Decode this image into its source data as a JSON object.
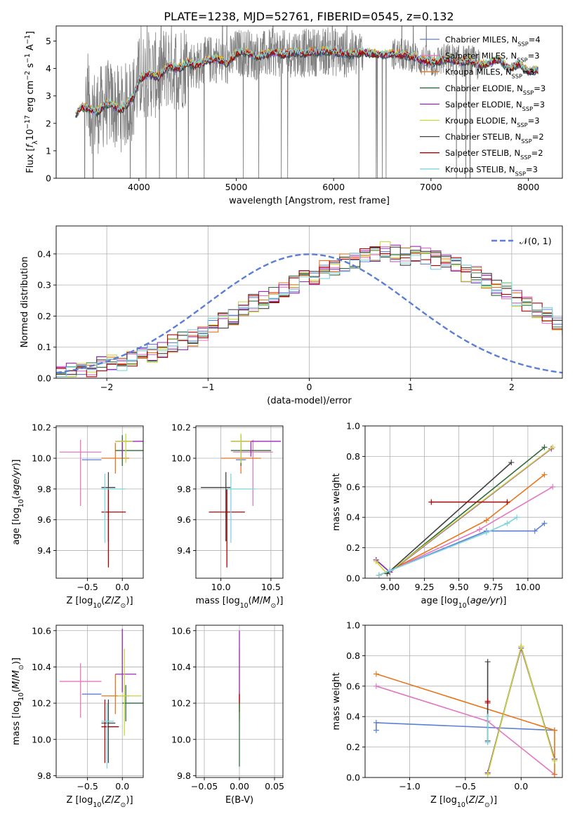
{
  "figure_title": "PLATE=1238, MJD=52761, FIBERID=0545, z=0.132",
  "colors": {
    "Chabrier MILES": "#5b7fd4",
    "Salpeter MILES": "#e377c2",
    "Kroupa MILES": "#e8751a",
    "Chabrier ELODIE": "#2f6b3d",
    "Salpeter ELODIE": "#9a28b8",
    "Kroupa ELODIE": "#c8d63a",
    "Chabrier STELIB": "#404040",
    "Salpeter STELIB": "#b40000",
    "Kroupa STELIB": "#7fd4dc",
    "data": "#808080"
  },
  "chart_data": [
    {
      "id": "spectrum",
      "type": "line",
      "title": "PLATE=1238, MJD=52761, FIBERID=0545, z=0.132",
      "xlabel": "wavelength [Angstrom, rest frame]",
      "ylabel": "Flux [f_λ10^-17 erg cm^-2 s^-1 A^-1]",
      "xlim": [
        3150,
        8350
      ],
      "ylim": [
        0,
        5.55
      ],
      "xticks": [
        4000,
        5000,
        6000,
        7000,
        8000
      ],
      "yticks": [
        0,
        1,
        2,
        3,
        4,
        5
      ],
      "grid": false,
      "legend": "upper right",
      "legend_entries": [
        {
          "label": "Chabrier MILES, N_SSP=4",
          "name": "Chabrier MILES"
        },
        {
          "label": "Salpeter MILES, N_SSP=3",
          "name": "Salpeter MILES"
        },
        {
          "label": "Kroupa MILES, N_SSP=3",
          "name": "Kroupa MILES"
        },
        {
          "label": "Chabrier ELODIE, N_SSP=3",
          "name": "Chabrier ELODIE"
        },
        {
          "label": "Salpeter ELODIE, N_SSP=3",
          "name": "Salpeter ELODIE"
        },
        {
          "label": "Kroupa ELODIE, N_SSP=3",
          "name": "Kroupa ELODIE"
        },
        {
          "label": "Chabrier STELIB, N_SSP=2",
          "name": "Chabrier STELIB"
        },
        {
          "label": "Salpeter STELIB, N_SSP=2",
          "name": "Salpeter STELIB"
        },
        {
          "label": "Kroupa STELIB, N_SSP=3",
          "name": "Kroupa STELIB"
        }
      ],
      "continuum": {
        "x": [
          3350,
          3400,
          3450,
          3500,
          3550,
          3600,
          3650,
          3700,
          3750,
          3800,
          3850,
          3900,
          3950,
          4000,
          4100,
          4200,
          4300,
          4400,
          4500,
          4600,
          4700,
          4800,
          4900,
          5000,
          5100,
          5200,
          5300,
          5400,
          5500,
          5600,
          5700,
          5800,
          5900,
          6000,
          6100,
          6200,
          6300,
          6400,
          6500,
          6600,
          6700,
          6800,
          6900,
          7000,
          7100,
          7200,
          7300,
          7400,
          7500,
          7600,
          7700,
          7800,
          7900,
          8000,
          8100
        ],
        "y": [
          2.3,
          2.55,
          2.6,
          2.5,
          2.4,
          2.5,
          2.7,
          2.75,
          2.6,
          2.5,
          2.6,
          2.8,
          3.0,
          3.6,
          3.8,
          3.7,
          4.1,
          4.0,
          4.2,
          4.1,
          4.3,
          4.35,
          4.2,
          4.55,
          4.6,
          4.45,
          4.5,
          4.6,
          4.5,
          4.6,
          4.55,
          4.6,
          4.65,
          4.6,
          4.55,
          4.5,
          4.6,
          4.55,
          4.5,
          4.55,
          4.5,
          4.45,
          4.3,
          4.2,
          4.3,
          4.35,
          4.25,
          4.3,
          4.1,
          4.2,
          4.35,
          4.0,
          4.15,
          3.9,
          3.95
        ]
      },
      "data_spectrum": {
        "name": "data",
        "x_range": [
          3350,
          8100
        ],
        "y_range": [
          0,
          5.55
        ],
        "note": "noisy observed spectrum drawn in gray behind the model fits"
      }
    },
    {
      "id": "residuals",
      "type": "line",
      "xlabel": "(data-model)/error",
      "ylabel": "Normed distribution",
      "xlim": [
        -2.5,
        2.5
      ],
      "ylim": [
        0,
        0.49
      ],
      "xticks": [
        -2,
        -1,
        0,
        1,
        2
      ],
      "yticks": [
        0.0,
        0.1,
        0.2,
        0.3,
        0.4
      ],
      "grid": true,
      "legend": "upper right",
      "legend_entries": [
        {
          "label": "𝒩(0, 1)",
          "name": "gaussian"
        }
      ],
      "gaussian": {
        "mean": 0,
        "sigma": 1
      },
      "bin_width": 0.1,
      "bin_start": -2.5,
      "hist_base": [
        0.02,
        0.02,
        0.025,
        0.03,
        0.04,
        0.045,
        0.05,
        0.06,
        0.07,
        0.08,
        0.09,
        0.11,
        0.12,
        0.13,
        0.15,
        0.17,
        0.19,
        0.2,
        0.22,
        0.24,
        0.25,
        0.27,
        0.29,
        0.3,
        0.32,
        0.33,
        0.35,
        0.36,
        0.37,
        0.38,
        0.39,
        0.4,
        0.41,
        0.4,
        0.39,
        0.4,
        0.39,
        0.38,
        0.37,
        0.36,
        0.34,
        0.33,
        0.31,
        0.29,
        0.28,
        0.26,
        0.24,
        0.22,
        0.2,
        0.18,
        0.16,
        0.14,
        0.13,
        0.11,
        0.1,
        0.09,
        0.08,
        0.07,
        0.06,
        0.05,
        0.05,
        0.04,
        0.035,
        0.03,
        0.03,
        0.025,
        0.02,
        0.02,
        0.02,
        0.02
      ]
    },
    {
      "id": "age_vs_Z",
      "type": "scatter",
      "xlabel": "Z [log10(Z/Z⊙)]",
      "ylabel": "age  [log10(age/yr)]",
      "xlim": [
        -0.95,
        0.3
      ],
      "ylim": [
        9.22,
        10.21
      ],
      "xticks": [
        -0.5,
        0.0
      ],
      "yticks": [
        9.4,
        9.6,
        9.8,
        10.0,
        10.2
      ],
      "grid": true,
      "points": [
        {
          "name": "Chabrier MILES",
          "x": -0.3,
          "y": 9.99,
          "xerr": [
            0.28,
            0.0
          ],
          "yerr": [
            0.0,
            0.0
          ]
        },
        {
          "name": "Salpeter MILES",
          "x": -0.6,
          "y": 10.04,
          "xerr": [
            0.3,
            0.3
          ],
          "yerr": [
            0.35,
            0.08
          ]
        },
        {
          "name": "Kroupa MILES",
          "x": -0.1,
          "y": 10.0,
          "xerr": [
            0.2,
            0.2
          ],
          "yerr": [
            0.1,
            0.1
          ]
        },
        {
          "name": "Chabrier ELODIE",
          "x": 0.0,
          "y": 10.05,
          "xerr": [
            0.1,
            0.3
          ],
          "yerr": [
            0.1,
            0.1
          ]
        },
        {
          "name": "Salpeter ELODIE",
          "x": 0.0,
          "y": 10.11,
          "xerr": [
            0.1,
            0.3
          ],
          "yerr": [
            0.1,
            0.0
          ]
        },
        {
          "name": "Kroupa ELODIE",
          "x": 0.05,
          "y": 10.11,
          "xerr": [
            0.15,
            0.1
          ],
          "yerr": [
            0.14,
            0.05
          ]
        },
        {
          "name": "Chabrier STELIB",
          "x": -0.2,
          "y": 9.81,
          "xerr": [
            0.1,
            0.1
          ],
          "yerr": [
            0.35,
            0.1
          ]
        },
        {
          "name": "Salpeter STELIB",
          "x": -0.2,
          "y": 9.65,
          "xerr": [
            0.1,
            0.25
          ],
          "yerr": [
            0.36,
            0.15
          ]
        },
        {
          "name": "Kroupa STELIB",
          "x": -0.25,
          "y": 9.8,
          "xerr": [
            0.05,
            0.3
          ],
          "yerr": [
            0.35,
            0.1
          ]
        }
      ]
    },
    {
      "id": "age_vs_mass",
      "type": "scatter",
      "xlabel": "mass [log10(M/M⊙)]",
      "ylabel": "",
      "xlim": [
        9.75,
        10.62
      ],
      "ylim": [
        9.22,
        10.21
      ],
      "xticks": [
        10.0,
        10.5
      ],
      "yticks": [
        9.4,
        9.6,
        9.8,
        10.0,
        10.2
      ],
      "grid": true,
      "points": [
        {
          "name": "Chabrier MILES",
          "x": 10.25,
          "y": 9.99,
          "xerr": [
            0.1,
            0.0
          ],
          "yerr": [
            0.0,
            0.0
          ]
        },
        {
          "name": "Salpeter MILES",
          "x": 10.32,
          "y": 10.04,
          "xerr": [
            0.2,
            0.2
          ],
          "yerr": [
            0.35,
            0.08
          ]
        },
        {
          "name": "Kroupa MILES",
          "x": 10.2,
          "y": 10.0,
          "xerr": [
            0.2,
            0.2
          ],
          "yerr": [
            0.1,
            0.1
          ]
        },
        {
          "name": "Chabrier ELODIE",
          "x": 10.2,
          "y": 10.05,
          "xerr": [
            0.1,
            0.3
          ],
          "yerr": [
            0.1,
            0.1
          ]
        },
        {
          "name": "Salpeter ELODIE",
          "x": 10.3,
          "y": 10.11,
          "xerr": [
            0.2,
            0.3
          ],
          "yerr": [
            0.1,
            0.0
          ]
        },
        {
          "name": "Kroupa ELODIE",
          "x": 10.2,
          "y": 10.11,
          "xerr": [
            0.1,
            0.1
          ],
          "yerr": [
            0.14,
            0.05
          ]
        },
        {
          "name": "Chabrier STELIB",
          "x": 10.05,
          "y": 9.81,
          "xerr": [
            0.25,
            0.05
          ],
          "yerr": [
            0.35,
            0.1
          ]
        },
        {
          "name": "Salpeter STELIB",
          "x": 10.06,
          "y": 9.65,
          "xerr": [
            0.18,
            0.18
          ],
          "yerr": [
            0.36,
            0.15
          ]
        },
        {
          "name": "Kroupa STELIB",
          "x": 10.1,
          "y": 9.8,
          "xerr": [
            0.05,
            0.25
          ],
          "yerr": [
            0.35,
            0.1
          ]
        }
      ]
    },
    {
      "id": "weight_vs_age",
      "type": "line",
      "xlabel": "age  [log10(age/yr)]",
      "ylabel": "mass weight",
      "xlim": [
        8.82,
        10.25
      ],
      "ylim": [
        0,
        1.0
      ],
      "xticks": [
        9.0,
        9.25,
        9.5,
        9.75,
        10.0
      ],
      "yticks": [
        0.0,
        0.2,
        0.4,
        0.6,
        0.8,
        1.0
      ],
      "grid": true,
      "series": [
        {
          "name": "Chabrier MILES",
          "x": [
            8.92,
            9.0,
            9.7,
            10.05,
            10.12
          ],
          "y": [
            0.02,
            0.05,
            0.31,
            0.31,
            0.36
          ]
        },
        {
          "name": "Salpeter MILES",
          "x": [
            8.92,
            9.0,
            9.65,
            10.18
          ],
          "y": [
            0.02,
            0.05,
            0.32,
            0.6
          ]
        },
        {
          "name": "Kroupa MILES",
          "x": [
            8.92,
            9.0,
            9.7,
            10.12
          ],
          "y": [
            0.02,
            0.05,
            0.38,
            0.68
          ]
        },
        {
          "name": "Chabrier ELODIE",
          "x": [
            8.9,
            9.0,
            10.12
          ],
          "y": [
            0.12,
            0.04,
            0.86
          ]
        },
        {
          "name": "Salpeter ELODIE",
          "x": [
            8.9,
            9.0,
            10.17
          ],
          "y": [
            0.12,
            0.04,
            0.85
          ]
        },
        {
          "name": "Kroupa ELODIE",
          "x": [
            8.9,
            8.98,
            10.18
          ],
          "y": [
            0.11,
            0.03,
            0.86
          ]
        },
        {
          "name": "Chabrier STELIB",
          "x": [
            8.98,
            9.88
          ],
          "y": [
            0.03,
            0.76
          ]
        },
        {
          "name": "Salpeter STELIB",
          "x": [
            9.3,
            9.85
          ],
          "y": [
            0.5,
            0.5
          ]
        },
        {
          "name": "Kroupa STELIB",
          "x": [
            8.92,
            9.0,
            9.7,
            9.85,
            9.92
          ],
          "y": [
            0.02,
            0.05,
            0.3,
            0.36,
            0.4
          ]
        }
      ]
    },
    {
      "id": "mass_vs_Z",
      "type": "scatter",
      "xlabel": "Z [log10(Z/Z⊙)]",
      "ylabel": "mass [log10(M/M⊙)]",
      "xlim": [
        -0.95,
        0.3
      ],
      "ylim": [
        9.79,
        10.63
      ],
      "xticks": [
        -0.5,
        0.0
      ],
      "yticks": [
        9.8,
        10.0,
        10.2,
        10.4,
        10.6
      ],
      "grid": true,
      "points": [
        {
          "name": "Chabrier MILES",
          "x": -0.3,
          "y": 10.25,
          "xerr": [
            0.28,
            0.0
          ],
          "yerr": [
            0.0,
            0.0
          ]
        },
        {
          "name": "Salpeter MILES",
          "x": -0.6,
          "y": 10.32,
          "xerr": [
            0.3,
            0.3
          ],
          "yerr": [
            0.2,
            0.1
          ]
        },
        {
          "name": "Kroupa MILES",
          "x": -0.1,
          "y": 10.24,
          "xerr": [
            0.2,
            0.2
          ],
          "yerr": [
            0.1,
            0.12
          ]
        },
        {
          "name": "Chabrier ELODIE",
          "x": 0.05,
          "y": 10.2,
          "xerr": [
            0.05,
            0.25
          ],
          "yerr": [
            0.1,
            0.1
          ]
        },
        {
          "name": "Salpeter ELODIE",
          "x": 0.0,
          "y": 10.36,
          "xerr": [
            0.1,
            0.2
          ],
          "yerr": [
            0.1,
            0.25
          ]
        },
        {
          "name": "Kroupa ELODIE",
          "x": 0.03,
          "y": 10.24,
          "xerr": [
            0.1,
            0.25
          ],
          "yerr": [
            0.22,
            0.26
          ]
        },
        {
          "name": "Chabrier STELIB",
          "x": -0.2,
          "y": 10.09,
          "xerr": [
            0.1,
            0.1
          ],
          "yerr": [
            0.22,
            0.13
          ]
        },
        {
          "name": "Salpeter STELIB",
          "x": -0.25,
          "y": 10.07,
          "xerr": [
            0.05,
            0.2
          ],
          "yerr": [
            0.2,
            0.15
          ]
        },
        {
          "name": "Kroupa STELIB",
          "x": -0.22,
          "y": 10.1,
          "xerr": [
            0.08,
            0.1
          ],
          "yerr": [
            0.26,
            0.1
          ]
        }
      ]
    },
    {
      "id": "mass_vs_ebv",
      "type": "scatter",
      "xlabel": "E(B-V)",
      "ylabel": "",
      "xlim": [
        -0.062,
        0.062
      ],
      "ylim": [
        9.79,
        10.63
      ],
      "xticks": [
        -0.05,
        0.0,
        0.05
      ],
      "yticks": [
        9.8,
        10.0,
        10.2,
        10.4,
        10.6
      ],
      "grid": true,
      "points": [
        {
          "name": "Kroupa ELODIE",
          "x": 0.0,
          "y": 10.3,
          "xerr": [
            0.0,
            0.0
          ],
          "yerr": [
            0.2,
            0.2
          ]
        },
        {
          "name": "Salpeter ELODIE",
          "x": 0.0,
          "y": 10.4,
          "xerr": [
            0.0,
            0.0
          ],
          "yerr": [
            0.2,
            0.2
          ]
        },
        {
          "name": "Salpeter STELIB",
          "x": 0.0,
          "y": 10.2,
          "xerr": [
            0.0,
            0.0
          ],
          "yerr": [
            0.05,
            0.05
          ]
        },
        {
          "name": "Chabrier ELODIE",
          "x": 0.0,
          "y": 10.1,
          "xerr": [
            0.0,
            0.0
          ],
          "yerr": [
            0.25,
            0.1
          ]
        }
      ]
    },
    {
      "id": "weight_vs_Z",
      "type": "line",
      "xlabel": "Z [log10(Z/Z⊙)]",
      "ylabel": "mass weight",
      "xlim": [
        -1.4,
        0.37
      ],
      "ylim": [
        0,
        1.0
      ],
      "xticks": [
        -1.0,
        -0.5,
        0.0
      ],
      "yticks": [
        0.0,
        0.2,
        0.4,
        0.6,
        0.8,
        1.0
      ],
      "grid": true,
      "series": [
        {
          "name": "Chabrier MILES",
          "x": [
            -1.3,
            -1.3,
            0.3
          ],
          "y": [
            0.31,
            0.36,
            0.31
          ]
        },
        {
          "name": "Salpeter MILES",
          "x": [
            -1.3,
            -0.3,
            0.3
          ],
          "y": [
            0.6,
            0.37,
            0.02
          ]
        },
        {
          "name": "Kroupa MILES",
          "x": [
            -1.3,
            0.3,
            0.3
          ],
          "y": [
            0.68,
            0.31,
            0.02
          ]
        },
        {
          "name": "Chabrier ELODIE",
          "x": [
            -0.3,
            0.0,
            0.3
          ],
          "y": [
            0.03,
            0.86,
            0.12
          ]
        },
        {
          "name": "Salpeter ELODIE",
          "x": [
            -0.3,
            0.0,
            0.3
          ],
          "y": [
            0.03,
            0.85,
            0.12
          ]
        },
        {
          "name": "Kroupa ELODIE",
          "x": [
            -0.3,
            0.0,
            0.3
          ],
          "y": [
            0.02,
            0.86,
            0.11
          ]
        },
        {
          "name": "Chabrier STELIB",
          "x": [
            -0.3,
            -0.3
          ],
          "y": [
            0.24,
            0.76
          ]
        },
        {
          "name": "Salpeter STELIB",
          "x": [
            -0.3,
            -0.3
          ],
          "y": [
            0.5,
            0.49
          ]
        },
        {
          "name": "Kroupa STELIB",
          "x": [
            -0.3,
            -0.3
          ],
          "y": [
            0.23,
            0.4
          ]
        }
      ]
    }
  ]
}
